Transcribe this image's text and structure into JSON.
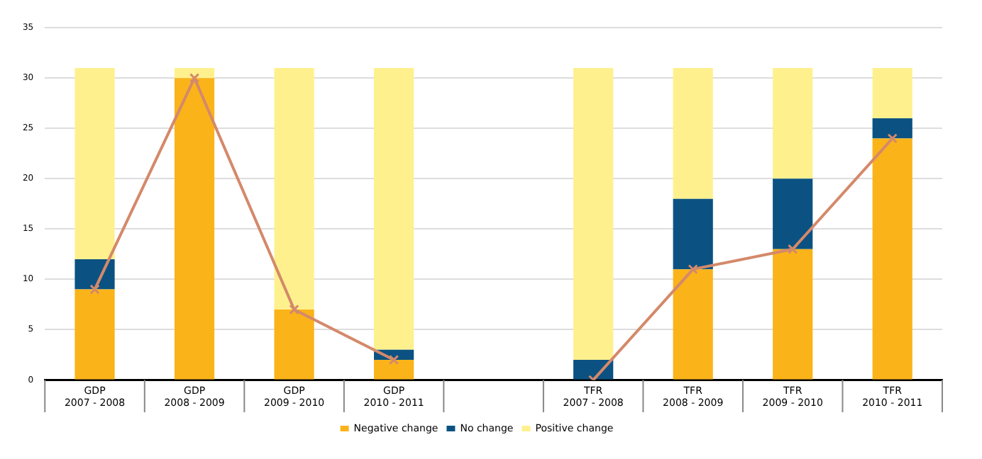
{
  "chart_data": {
    "type": "bar",
    "stacked": true,
    "categories": [
      "GDP\n2007 - 2008",
      "GDP\n2008 - 2009",
      "GDP\n2009 - 2010",
      "GDP\n2010 - 2011",
      null,
      "TFR\n2007 - 2008",
      "TFR\n2008 - 2009",
      "TFR\n2009 - 2010",
      "TFR\n2010 - 2011"
    ],
    "series": [
      {
        "name": "Negative change",
        "color": "#fbb31a",
        "values": [
          9,
          30,
          7,
          2,
          null,
          0,
          11,
          13,
          24
        ]
      },
      {
        "name": "No change",
        "color": "#0b5282",
        "values": [
          3,
          0,
          0,
          1,
          null,
          2,
          7,
          7,
          2
        ]
      },
      {
        "name": "Positive change",
        "color": "#fff08e",
        "values": [
          19,
          1,
          24,
          28,
          null,
          29,
          13,
          11,
          5
        ]
      },
      {
        "type": "line",
        "color": "#d4896a",
        "marker": "cross",
        "values": [
          9,
          30,
          7,
          2,
          null,
          0,
          11,
          13,
          24
        ]
      }
    ],
    "ylim": [
      0,
      35
    ],
    "yticks": [
      0,
      5,
      10,
      15,
      20,
      25,
      30,
      35
    ],
    "grid": "y",
    "legend": "bottom"
  }
}
